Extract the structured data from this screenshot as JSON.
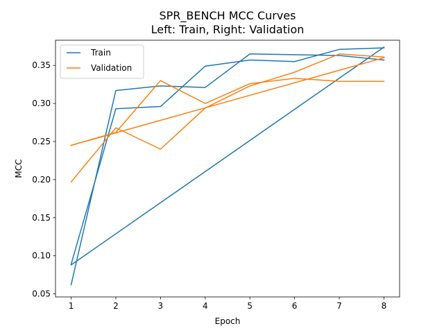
{
  "chart_data": {
    "type": "line",
    "title": "SPR_BENCH MCC Curves",
    "subtitle": "Left: Train, Right: Validation",
    "xlabel": "Epoch",
    "ylabel": "MCC",
    "xlim": [
      0.65,
      8.35
    ],
    "ylim": [
      0.046,
      0.383
    ],
    "xticks": [
      1,
      2,
      3,
      4,
      5,
      6,
      7,
      8
    ],
    "yticks": [
      0.05,
      0.1,
      0.15,
      0.2,
      0.25,
      0.3,
      0.35
    ],
    "ytick_labels": [
      "0.05",
      "0.10",
      "0.15",
      "0.20",
      "0.25",
      "0.30",
      "0.35"
    ],
    "legend_position": "top-left",
    "series": [
      {
        "name": "Train",
        "color": "#1f77b4",
        "runs": [
          {
            "x": [
              1,
              2,
              3,
              4,
              5,
              6,
              7,
              8
            ],
            "y": [
              0.062,
              0.317,
              0.323,
              0.321,
              0.365,
              0.364,
              0.363,
              0.357
            ]
          },
          {
            "x": [
              1,
              2,
              3,
              4,
              5,
              6,
              7,
              8
            ],
            "y": [
              0.089,
              0.293,
              0.296,
              0.349,
              0.357,
              0.355,
              0.371,
              0.373
            ]
          },
          {
            "x": [
              1,
              8
            ],
            "y": [
              0.088,
              0.374
            ]
          }
        ]
      },
      {
        "name": "Validation",
        "color": "#ff7f0e",
        "runs": [
          {
            "x": [
              1,
              2,
              3,
              4,
              5,
              6,
              7,
              8
            ],
            "y": [
              0.197,
              0.268,
              0.24,
              0.294,
              0.323,
              0.341,
              0.365,
              0.361
            ]
          },
          {
            "x": [
              1,
              2,
              3,
              4,
              5,
              6,
              7,
              8
            ],
            "y": [
              0.245,
              0.262,
              0.33,
              0.3,
              0.326,
              0.333,
              0.329,
              0.329
            ]
          },
          {
            "x": [
              1,
              8
            ],
            "y": [
              0.245,
              0.36
            ]
          }
        ]
      }
    ]
  }
}
